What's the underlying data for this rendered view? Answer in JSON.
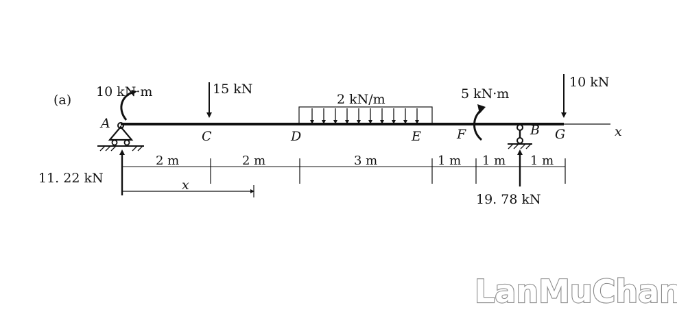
{
  "figure_label": "(a)",
  "loads": {
    "moment_A": "10 kN·m",
    "force_C": "15 kN",
    "distributed_DE": "2 kN/m",
    "moment_F": "5 kN·m",
    "force_G": "10 kN"
  },
  "points": {
    "A": "A",
    "C": "C",
    "D": "D",
    "E": "E",
    "F": "F",
    "B": "B",
    "G": "G"
  },
  "axis_label": "x",
  "reactions": {
    "A": "11. 22 kN",
    "B": "19. 78 kN"
  },
  "dimensions": [
    "2 m",
    "2 m",
    "3 m",
    "1 m",
    "1 m",
    "1 m"
  ],
  "position_variable": "x",
  "watermark": "LanMuChan"
}
